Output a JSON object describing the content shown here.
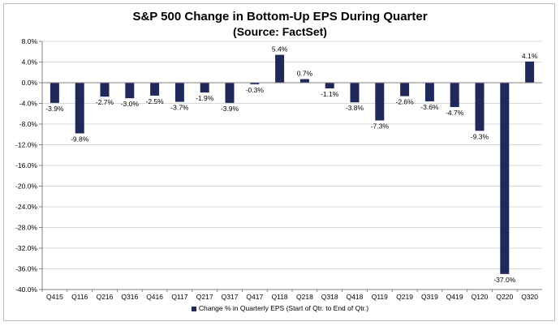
{
  "chart_data": {
    "type": "bar",
    "title": "S&P 500 Change in Bottom-Up EPS During Quarter",
    "subtitle": "(Source: FactSet)",
    "categories": [
      "Q415",
      "Q116",
      "Q216",
      "Q316",
      "Q416",
      "Q117",
      "Q217",
      "Q317",
      "Q417",
      "Q118",
      "Q218",
      "Q318",
      "Q418",
      "Q119",
      "Q219",
      "Q319",
      "Q419",
      "Q120",
      "Q220",
      "Q320"
    ],
    "series": [
      {
        "name": "Change % in Quarterly EPS (Start of Qtr. to End of Qtr.)",
        "values": [
          -3.9,
          -9.8,
          -2.7,
          -3.0,
          -2.5,
          -3.7,
          -1.9,
          -3.9,
          -0.3,
          5.4,
          0.7,
          -1.1,
          -3.8,
          -7.3,
          -2.6,
          -3.6,
          -4.7,
          -9.3,
          -37.0,
          4.1
        ]
      }
    ],
    "data_labels": [
      "-3.9%",
      "-9.8%",
      "-2.7%",
      "-3.0%",
      "-2.5%",
      "-3.7%",
      "-1.9%",
      "-3.9%",
      "-0.3%",
      "5.4%",
      "0.7%",
      "-1.1%",
      "-3.8%",
      "-7.3%",
      "-2.6%",
      "-3.6%",
      "-4.7%",
      "-9.3%",
      "-37.0%",
      "4.1%"
    ],
    "y_ticks": [
      8,
      4,
      0,
      -4,
      -8,
      -12,
      -16,
      -20,
      -24,
      -28,
      -32,
      -36,
      -40
    ],
    "y_tick_labels": [
      "8.0%",
      "4.0%",
      "0.0%",
      "-4.0%",
      "-8.0%",
      "-12.0%",
      "-16.0%",
      "-20.0%",
      "-24.0%",
      "-28.0%",
      "-32.0%",
      "-36.0%",
      "-40.0%"
    ],
    "ylim": [
      -40,
      8
    ],
    "xlabel": "",
    "ylabel": "",
    "grid": true,
    "legend_position": "bottom",
    "colors": {
      "bar": "#1f2a5a",
      "grid": "#d9d9d9",
      "axis": "#808080"
    }
  }
}
